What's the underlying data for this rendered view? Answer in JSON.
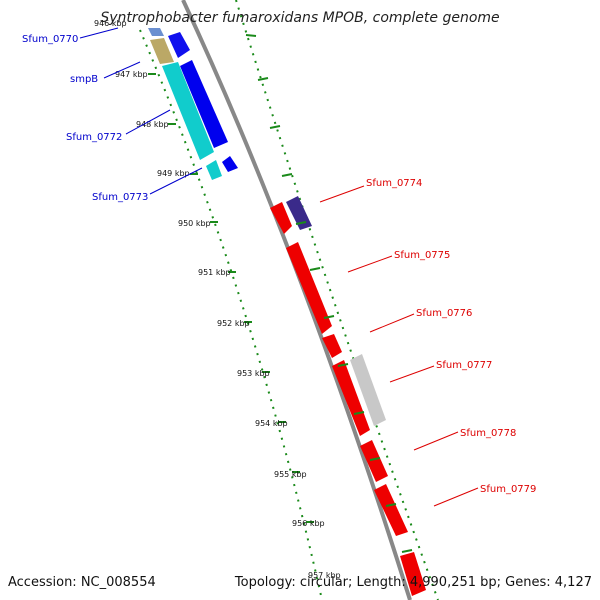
{
  "title": "Syntrophobacter fumaroxidans MPOB, complete genome",
  "footer": {
    "accession": "Accession: NC_008554",
    "summary": "Topology: circular; Length: 4,990,251 bp; Genes: 4,127"
  },
  "colors": {
    "reverse_label": "#0000cc",
    "forward_label": "#dd0000",
    "backbone": "#888888",
    "ticks": "#1a8a1a"
  },
  "scale_labels": [
    "946 kbp",
    "947 kbp",
    "948 kbp",
    "949 kbp",
    "950 kbp",
    "951 kbp",
    "952 kbp",
    "953 kbp",
    "954 kbp",
    "955 kbp",
    "956 kbp",
    "957 kbp"
  ],
  "reverse_genes": [
    {
      "label": "Sfum_0770"
    },
    {
      "label": "smpB"
    },
    {
      "label": "Sfum_0772"
    },
    {
      "label": "Sfum_0773"
    }
  ],
  "forward_genes": [
    {
      "label": "Sfum_0774"
    },
    {
      "label": "Sfum_0775"
    },
    {
      "label": "Sfum_0776"
    },
    {
      "label": "Sfum_0777"
    },
    {
      "label": "Sfum_0778"
    },
    {
      "label": "Sfum_0779"
    }
  ]
}
